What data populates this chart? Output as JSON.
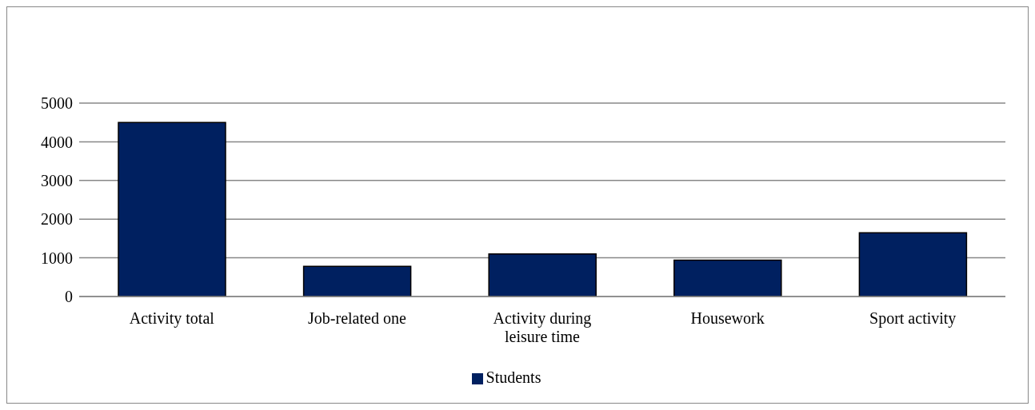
{
  "chart_data": {
    "type": "bar",
    "categories": [
      "Activity total",
      "Job-related one",
      "Activity during leisure time",
      "Housework",
      "Sport activity"
    ],
    "series": [
      {
        "name": "Students",
        "color": "#002060",
        "values": [
          4500,
          780,
          1100,
          940,
          1650
        ]
      }
    ],
    "ylim": [
      0,
      5000
    ],
    "yticks": [
      0,
      1000,
      2000,
      3000,
      4000,
      5000
    ],
    "grid": "y",
    "legend": "bottom"
  }
}
